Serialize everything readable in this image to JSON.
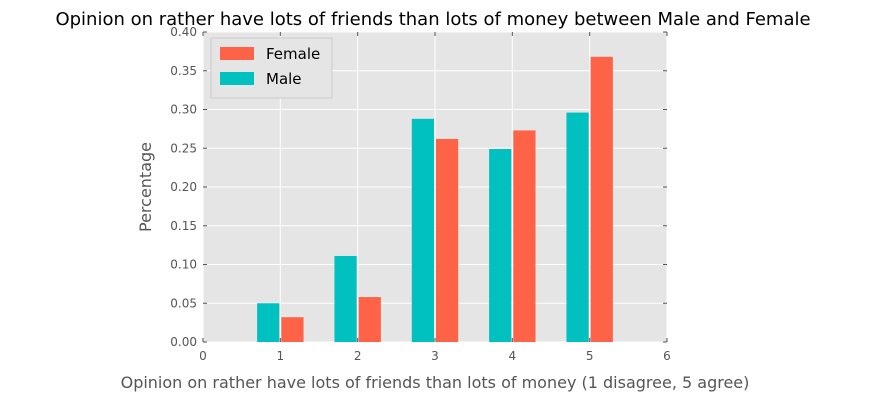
{
  "chart_data": {
    "type": "bar",
    "title": "Opinion on rather have lots of friends than lots of money between Male and Female",
    "xlabel": "Opinion on rather have lots of friends than lots of money (1 disagree, 5 agree)",
    "ylabel": "Percentage",
    "categories": [
      1,
      2,
      3,
      4,
      5
    ],
    "xlim": [
      0,
      6
    ],
    "ylim": [
      0,
      0.4
    ],
    "xticks": [
      "0",
      "1",
      "2",
      "3",
      "4",
      "5",
      "6"
    ],
    "yticks": [
      "0.00",
      "0.05",
      "0.10",
      "0.15",
      "0.20",
      "0.25",
      "0.30",
      "0.35",
      "0.40"
    ],
    "grid": true,
    "legend_position": "top-left",
    "series": [
      {
        "name": "Female",
        "color": "#FF6347",
        "values": [
          0.032,
          0.058,
          0.262,
          0.273,
          0.368
        ]
      },
      {
        "name": "Male",
        "color": "#00C0C0",
        "values": [
          0.05,
          0.111,
          0.288,
          0.249,
          0.296
        ]
      }
    ]
  }
}
